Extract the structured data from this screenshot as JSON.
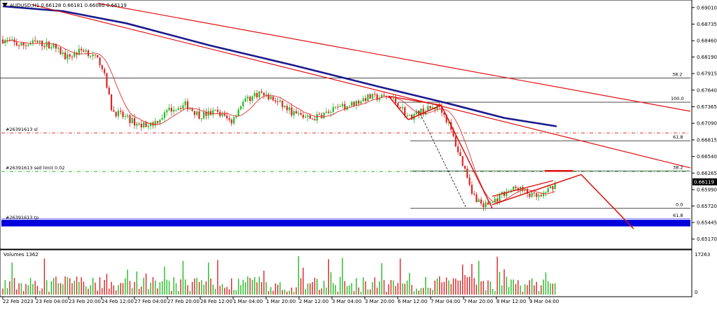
{
  "chart_data": {
    "type": "candlestick",
    "header": "AUDUSD,H1  0.66128 0.66181 0.66080 0.66119",
    "price_axis": {
      "ylim": [
        0.6505,
        0.691
      ],
      "ticks": [
        "0.69010",
        "0.68735",
        "0.68460",
        "0.68190",
        "0.67915",
        "0.67640",
        "0.67365",
        "0.67090",
        "0.66815",
        "0.66540",
        "0.66265",
        "0.65990",
        "0.65720",
        "0.65445",
        "0.65170"
      ],
      "tick_values": [
        0.6901,
        0.68735,
        0.6846,
        0.6819,
        0.67915,
        0.6764,
        0.67365,
        0.6709,
        0.66815,
        0.6654,
        0.66265,
        0.6599,
        0.6572,
        0.65445,
        0.6517
      ],
      "current_price": "0.66119",
      "current_value": 0.66119
    },
    "time_axis": {
      "labels": [
        "22 Feb 2023",
        "23 Feb 04:00",
        "23 Feb 20:00",
        "24 Feb 12:00",
        "27 Feb 04:00",
        "27 Feb 20:00",
        "28 Feb 12:00",
        "1 Mar 04:00",
        "1 Mar 20:00",
        "2 Mar 12:00",
        "3 Mar 04:00",
        "3 Mar 20:00",
        "6 Mar 12:00",
        "7 Mar 04:00",
        "7 Mar 20:00",
        "8 Mar 12:00",
        "9 Mar 04:00"
      ]
    },
    "volume_panel": {
      "title": "Volumes 1362",
      "max_label": "17263",
      "zero_label": "0",
      "max_value": 17263
    },
    "order_lines": [
      {
        "label": "#26391613 sl",
        "price": 0.6693,
        "color": "#e03030"
      },
      {
        "label": "#26391613 sell limit 0.02",
        "price": 0.6629,
        "color": "#2fb52f"
      },
      {
        "label": "#26391613 tp",
        "price": 0.6547,
        "color": "#1515cc"
      }
    ],
    "fib_levels": [
      {
        "label": "38.2",
        "price": 0.6784
      },
      {
        "label": "100.0",
        "price": 0.6744
      },
      {
        "label": "61.8",
        "price": 0.668
      },
      {
        "label": "38.2",
        "price": 0.663
      },
      {
        "label": "0.0",
        "price": 0.6568
      },
      {
        "label": "61.8",
        "price": 0.655
      }
    ],
    "support_zone": [
      0.6538,
      0.6549
    ],
    "colors": {
      "bull": "#22bb22",
      "bear": "#dd2222",
      "ma_slow": "#1a1a8c",
      "ma_fast": "#e03030",
      "trend": "#e01010",
      "support": "#0000dd"
    }
  }
}
